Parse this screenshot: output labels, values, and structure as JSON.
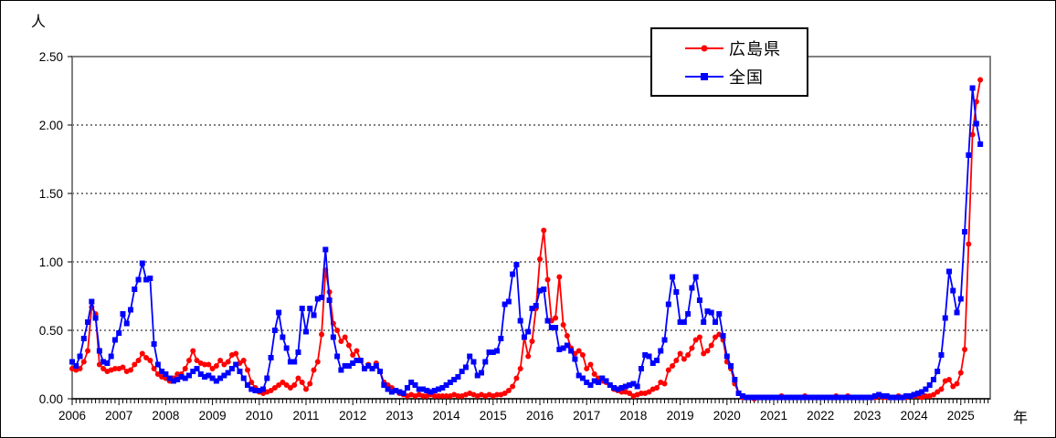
{
  "axis": {
    "y_unit": "人",
    "x_unit": "年"
  },
  "legend": {
    "items": [
      {
        "label": "広島県"
      },
      {
        "label": "全国"
      }
    ]
  },
  "chart_data": {
    "type": "line",
    "title": "",
    "xlabel": "年",
    "ylabel": "人",
    "x_resolution": "monthly",
    "x_start": "2006-01",
    "x_end": "2025-06",
    "ylim": [
      0,
      2.5
    ],
    "y_ticks": [
      "0.00",
      "0.50",
      "1.00",
      "1.50",
      "2.00",
      "2.50"
    ],
    "x_tick_years": [
      "2006",
      "2007",
      "2008",
      "2009",
      "2010",
      "2011",
      "2012",
      "2013",
      "2014",
      "2015",
      "2016",
      "2017",
      "2018",
      "2019",
      "2020",
      "2021",
      "2022",
      "2023",
      "2024",
      "2025"
    ],
    "grid": "horizontal-dashed",
    "legend_position": "top-center-inside",
    "plot_border_color": "#808080",
    "series": [
      {
        "id": "hiroshima",
        "name": "広島県",
        "color": "#ff0000",
        "marker": "circle",
        "values": [
          0.22,
          0.21,
          0.22,
          0.27,
          0.35,
          0.67,
          0.62,
          0.25,
          0.22,
          0.2,
          0.21,
          0.22,
          0.22,
          0.23,
          0.2,
          0.21,
          0.25,
          0.28,
          0.33,
          0.3,
          0.28,
          0.22,
          0.18,
          0.16,
          0.15,
          0.13,
          0.15,
          0.18,
          0.18,
          0.22,
          0.28,
          0.35,
          0.28,
          0.26,
          0.25,
          0.25,
          0.22,
          0.24,
          0.28,
          0.25,
          0.27,
          0.32,
          0.33,
          0.26,
          0.28,
          0.21,
          0.12,
          0.08,
          0.05,
          0.04,
          0.05,
          0.06,
          0.08,
          0.1,
          0.12,
          0.1,
          0.08,
          0.1,
          0.15,
          0.12,
          0.07,
          0.11,
          0.21,
          0.27,
          0.47,
          0.94,
          0.78,
          0.55,
          0.5,
          0.42,
          0.45,
          0.39,
          0.32,
          0.35,
          0.28,
          0.22,
          0.25,
          0.22,
          0.26,
          0.2,
          0.12,
          0.1,
          0.08,
          0.06,
          0.04,
          0.03,
          0.02,
          0.03,
          0.02,
          0.03,
          0.02,
          0.02,
          0.03,
          0.02,
          0.02,
          0.02,
          0.02,
          0.02,
          0.03,
          0.02,
          0.02,
          0.03,
          0.04,
          0.03,
          0.02,
          0.03,
          0.02,
          0.03,
          0.02,
          0.03,
          0.03,
          0.04,
          0.06,
          0.09,
          0.15,
          0.22,
          0.45,
          0.31,
          0.42,
          0.66,
          1.02,
          1.23,
          0.87,
          0.57,
          0.59,
          0.89,
          0.54,
          0.46,
          0.37,
          0.33,
          0.35,
          0.32,
          0.22,
          0.25,
          0.18,
          0.15,
          0.13,
          0.12,
          0.1,
          0.07,
          0.06,
          0.05,
          0.05,
          0.04,
          0.02,
          0.03,
          0.04,
          0.04,
          0.05,
          0.07,
          0.08,
          0.12,
          0.11,
          0.21,
          0.24,
          0.28,
          0.33,
          0.29,
          0.32,
          0.37,
          0.43,
          0.45,
          0.33,
          0.35,
          0.39,
          0.45,
          0.47,
          0.43,
          0.27,
          0.22,
          0.11,
          0.04,
          0.01,
          0.01,
          0.01,
          0.0,
          0.01,
          0.01,
          0.01,
          0.01,
          0.01,
          0.01,
          0.02,
          0.01,
          0.01,
          0.01,
          0.01,
          0.01,
          0.02,
          0.01,
          0.01,
          0.01,
          0.01,
          0.01,
          0.01,
          0.01,
          0.02,
          0.01,
          0.01,
          0.02,
          0.01,
          0.01,
          0.01,
          0.01,
          0.01,
          0.01,
          0.01,
          0.02,
          0.01,
          0.01,
          0.01,
          0.01,
          0.02,
          0.01,
          0.01,
          0.02,
          0.02,
          0.02,
          0.01,
          0.02,
          0.02,
          0.03,
          0.05,
          0.07,
          0.13,
          0.14,
          0.09,
          0.11,
          0.19,
          0.36,
          1.13,
          1.93,
          2.17,
          2.33
        ]
      },
      {
        "id": "zenkoku",
        "name": "全国",
        "color": "#0000ff",
        "marker": "square",
        "values": [
          0.27,
          0.24,
          0.31,
          0.44,
          0.56,
          0.71,
          0.59,
          0.35,
          0.27,
          0.26,
          0.31,
          0.43,
          0.48,
          0.62,
          0.55,
          0.65,
          0.8,
          0.87,
          0.99,
          0.87,
          0.88,
          0.4,
          0.25,
          0.2,
          0.18,
          0.15,
          0.13,
          0.14,
          0.16,
          0.15,
          0.17,
          0.2,
          0.22,
          0.18,
          0.16,
          0.17,
          0.15,
          0.13,
          0.15,
          0.17,
          0.19,
          0.22,
          0.25,
          0.2,
          0.15,
          0.1,
          0.07,
          0.06,
          0.06,
          0.07,
          0.15,
          0.3,
          0.5,
          0.63,
          0.45,
          0.37,
          0.27,
          0.27,
          0.34,
          0.66,
          0.49,
          0.66,
          0.61,
          0.73,
          0.74,
          1.09,
          0.72,
          0.45,
          0.31,
          0.21,
          0.24,
          0.24,
          0.26,
          0.28,
          0.28,
          0.22,
          0.24,
          0.22,
          0.24,
          0.2,
          0.1,
          0.07,
          0.05,
          0.06,
          0.05,
          0.04,
          0.08,
          0.12,
          0.1,
          0.07,
          0.07,
          0.06,
          0.05,
          0.06,
          0.07,
          0.08,
          0.1,
          0.12,
          0.14,
          0.16,
          0.2,
          0.23,
          0.31,
          0.27,
          0.17,
          0.19,
          0.27,
          0.34,
          0.34,
          0.35,
          0.44,
          0.69,
          0.71,
          0.91,
          0.98,
          0.57,
          0.45,
          0.49,
          0.66,
          0.68,
          0.79,
          0.8,
          0.57,
          0.52,
          0.52,
          0.36,
          0.37,
          0.39,
          0.35,
          0.29,
          0.17,
          0.15,
          0.12,
          0.1,
          0.13,
          0.12,
          0.15,
          0.13,
          0.1,
          0.08,
          0.07,
          0.08,
          0.09,
          0.1,
          0.11,
          0.09,
          0.22,
          0.32,
          0.31,
          0.26,
          0.28,
          0.35,
          0.43,
          0.69,
          0.89,
          0.78,
          0.56,
          0.56,
          0.62,
          0.81,
          0.89,
          0.72,
          0.56,
          0.64,
          0.63,
          0.56,
          0.62,
          0.46,
          0.31,
          0.24,
          0.14,
          0.04,
          0.02,
          0.01,
          0.01,
          0.01,
          0.01,
          0.01,
          0.01,
          0.01,
          0.01,
          0.01,
          0.01,
          0.01,
          0.01,
          0.01,
          0.01,
          0.01,
          0.01,
          0.01,
          0.01,
          0.01,
          0.01,
          0.01,
          0.01,
          0.01,
          0.01,
          0.01,
          0.01,
          0.01,
          0.01,
          0.01,
          0.01,
          0.01,
          0.01,
          0.01,
          0.02,
          0.03,
          0.02,
          0.02,
          0.01,
          0.01,
          0.01,
          0.01,
          0.02,
          0.02,
          0.03,
          0.04,
          0.05,
          0.07,
          0.1,
          0.14,
          0.2,
          0.32,
          0.59,
          0.93,
          0.79,
          0.63,
          0.73,
          1.22,
          1.78,
          2.27,
          2.01,
          1.86
        ]
      }
    ]
  }
}
